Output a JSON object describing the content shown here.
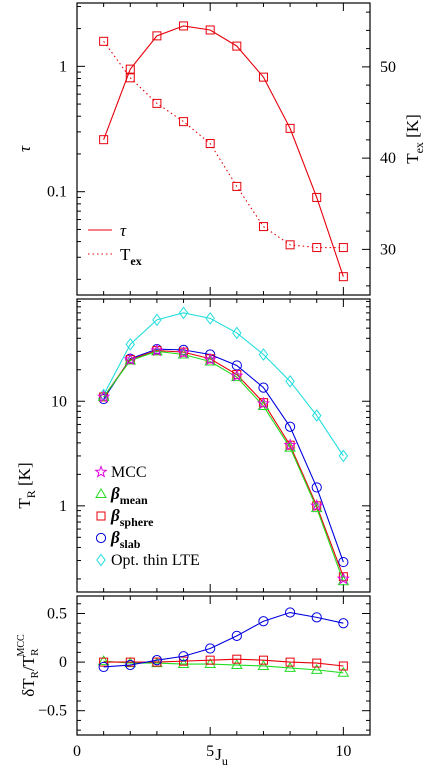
{
  "chart_data": [
    {
      "type": "line",
      "panel": "top",
      "ylabel": "τ",
      "ylabel_right": "T",
      "ylabel_right_sub": "ex",
      "ylabel_right_unit": "[K]",
      "yscale": "log",
      "ylim": [
        0.015,
        3.2
      ],
      "ylim_right": [
        25,
        57
      ],
      "xlim": [
        0,
        11
      ],
      "yticks_major": [
        {
          "v": 0.1,
          "label": "0.1"
        },
        {
          "v": 1,
          "label": "1"
        }
      ],
      "yticks_right": [
        {
          "v": 30,
          "label": "30"
        },
        {
          "v": 40,
          "label": "40"
        },
        {
          "v": 50,
          "label": "50"
        }
      ],
      "legend_position": "bottom-left",
      "series": [
        {
          "name": "τ",
          "color": "#e8000b",
          "style": "solid",
          "marker": "square",
          "axis": "left",
          "x": [
            1,
            2,
            3,
            4,
            5,
            6,
            7,
            8,
            9,
            10
          ],
          "values": [
            0.26,
            0.95,
            1.75,
            2.1,
            1.95,
            1.45,
            0.82,
            0.32,
            0.09,
            0.021
          ]
        },
        {
          "name": "T",
          "name_sub": "ex",
          "color": "#e8000b",
          "style": "dotted",
          "marker": "square",
          "axis": "right",
          "x": [
            1,
            2,
            3,
            4,
            5,
            6,
            7,
            8,
            9,
            10
          ],
          "values": [
            52.8,
            48.8,
            46.0,
            44.0,
            41.6,
            36.9,
            32.5,
            30.5,
            30.2,
            30.2
          ]
        }
      ]
    },
    {
      "type": "line",
      "panel": "middle",
      "ylabel": "T",
      "ylabel_sub": "R",
      "ylabel_unit": "[K]",
      "yscale": "log",
      "ylim": [
        0.15,
        95
      ],
      "xlim": [
        0,
        11
      ],
      "yticks_major": [
        {
          "v": 1,
          "label": "1"
        },
        {
          "v": 10,
          "label": "10"
        }
      ],
      "legend_position": "bottom-left",
      "series": [
        {
          "name": "MCC",
          "color": "#e000e0",
          "marker": "star",
          "line": false,
          "x": [
            1,
            2,
            3,
            4,
            5,
            6,
            7,
            8,
            9,
            10
          ],
          "values": [
            11.0,
            25.0,
            30.5,
            29.0,
            25.0,
            17.5,
            9.5,
            3.8,
            1.0,
            0.2
          ]
        },
        {
          "name": "β",
          "name_sub": "mean",
          "color": "#22dd22",
          "marker": "triangle",
          "line": true,
          "x": [
            1,
            2,
            3,
            4,
            5,
            6,
            7,
            8,
            9,
            10
          ],
          "values": [
            11.0,
            24.5,
            30.0,
            28.0,
            24.0,
            17.0,
            9.0,
            3.6,
            0.95,
            0.19
          ]
        },
        {
          "name": "β",
          "name_sub": "sphere",
          "color": "#e8000b",
          "marker": "square",
          "line": true,
          "x": [
            1,
            2,
            3,
            4,
            5,
            6,
            7,
            8,
            9,
            10
          ],
          "values": [
            11.0,
            25.0,
            30.5,
            29.5,
            25.5,
            18.0,
            9.7,
            3.8,
            1.0,
            0.21
          ]
        },
        {
          "name": "β",
          "name_sub": "slab",
          "color": "#0000e0",
          "marker": "circle",
          "line": true,
          "x": [
            1,
            2,
            3,
            4,
            5,
            6,
            7,
            8,
            9,
            10
          ],
          "values": [
            10.5,
            25.5,
            31.5,
            31.0,
            28.0,
            22.0,
            13.5,
            5.7,
            1.5,
            0.29
          ]
        },
        {
          "name": "Opt. thin LTE",
          "color": "#22dddd",
          "marker": "diamond",
          "line": true,
          "x": [
            1,
            2,
            3,
            4,
            5,
            6,
            7,
            8,
            9,
            10
          ],
          "values": [
            11.5,
            35.0,
            60.0,
            70.0,
            62.0,
            45.0,
            28.0,
            15.5,
            7.3,
            3.0
          ]
        }
      ]
    },
    {
      "type": "line",
      "panel": "bottom",
      "xlabel": "J",
      "xlabel_sub": "u",
      "ylabel": "δT",
      "ylabel_sub": "R",
      "ylabel_mid": "/T",
      "ylabel_sub2": "R",
      "ylabel_sup": "MCC",
      "ylim": [
        -0.75,
        0.68
      ],
      "xlim": [
        0,
        11
      ],
      "xticks": [
        {
          "v": 0,
          "label": "0"
        },
        {
          "v": 5,
          "label": "5"
        },
        {
          "v": 10,
          "label": "10"
        }
      ],
      "yticks": [
        {
          "v": -0.5,
          "label": "−0.5"
        },
        {
          "v": 0,
          "label": "0"
        },
        {
          "v": 0.5,
          "label": "0.5"
        }
      ],
      "series": [
        {
          "name": "β",
          "name_sub": "mean",
          "color": "#22dd22",
          "marker": "triangle",
          "x": [
            1,
            2,
            3,
            4,
            5,
            6,
            7,
            8,
            9,
            10
          ],
          "values": [
            0.01,
            -0.01,
            -0.01,
            -0.02,
            -0.02,
            -0.03,
            -0.04,
            -0.06,
            -0.08,
            -0.11
          ]
        },
        {
          "name": "β",
          "name_sub": "sphere",
          "color": "#e8000b",
          "marker": "square",
          "x": [
            1,
            2,
            3,
            4,
            5,
            6,
            7,
            8,
            9,
            10
          ],
          "values": [
            0.0,
            0.0,
            0.0,
            0.01,
            0.02,
            0.03,
            0.02,
            0.0,
            -0.01,
            -0.04
          ]
        },
        {
          "name": "β",
          "name_sub": "slab",
          "color": "#0000e0",
          "marker": "circle",
          "x": [
            1,
            2,
            3,
            4,
            5,
            6,
            7,
            8,
            9,
            10
          ],
          "values": [
            -0.05,
            -0.03,
            0.02,
            0.06,
            0.14,
            0.27,
            0.42,
            0.51,
            0.46,
            0.4
          ]
        }
      ]
    }
  ]
}
